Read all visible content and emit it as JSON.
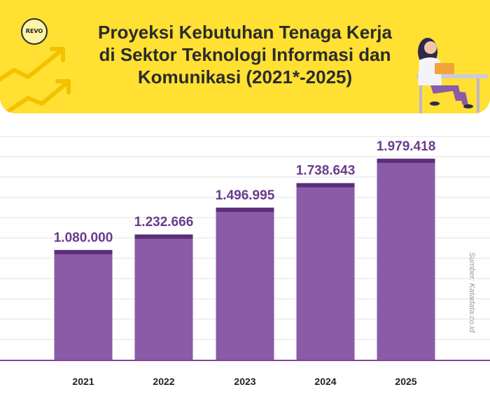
{
  "header": {
    "logo_text": "REVO",
    "title_lines": [
      "Proyeksi Kebutuhan Tenaga Kerja",
      "di Sektor Teknologi Informasi dan",
      "Komunikasi (2021*-2025)"
    ]
  },
  "source": "Sumber: Katadata.co.id",
  "colors": {
    "banner": "#ffe033",
    "bar": "#8a5ba6",
    "bar_cap": "#5b2e7a",
    "value_label": "#6a3b8c",
    "baseline": "#7a4a9a"
  },
  "chart_data": {
    "type": "bar",
    "title": "Proyeksi Kebutuhan Tenaga Kerja di Sektor Teknologi Informasi dan Komunikasi (2021*-2025)",
    "categories": [
      "2021",
      "2022",
      "2023",
      "2024",
      "2025"
    ],
    "values": [
      1080000,
      1232666,
      1496995,
      1738643,
      1979418
    ],
    "value_labels": [
      "1.080.000",
      "1.232.666",
      "1.496.995",
      "1.738.643",
      "1.979.418"
    ],
    "xlabel": "",
    "ylabel": "",
    "ylim": [
      0,
      2150000
    ],
    "grid": true,
    "legend": "none"
  }
}
